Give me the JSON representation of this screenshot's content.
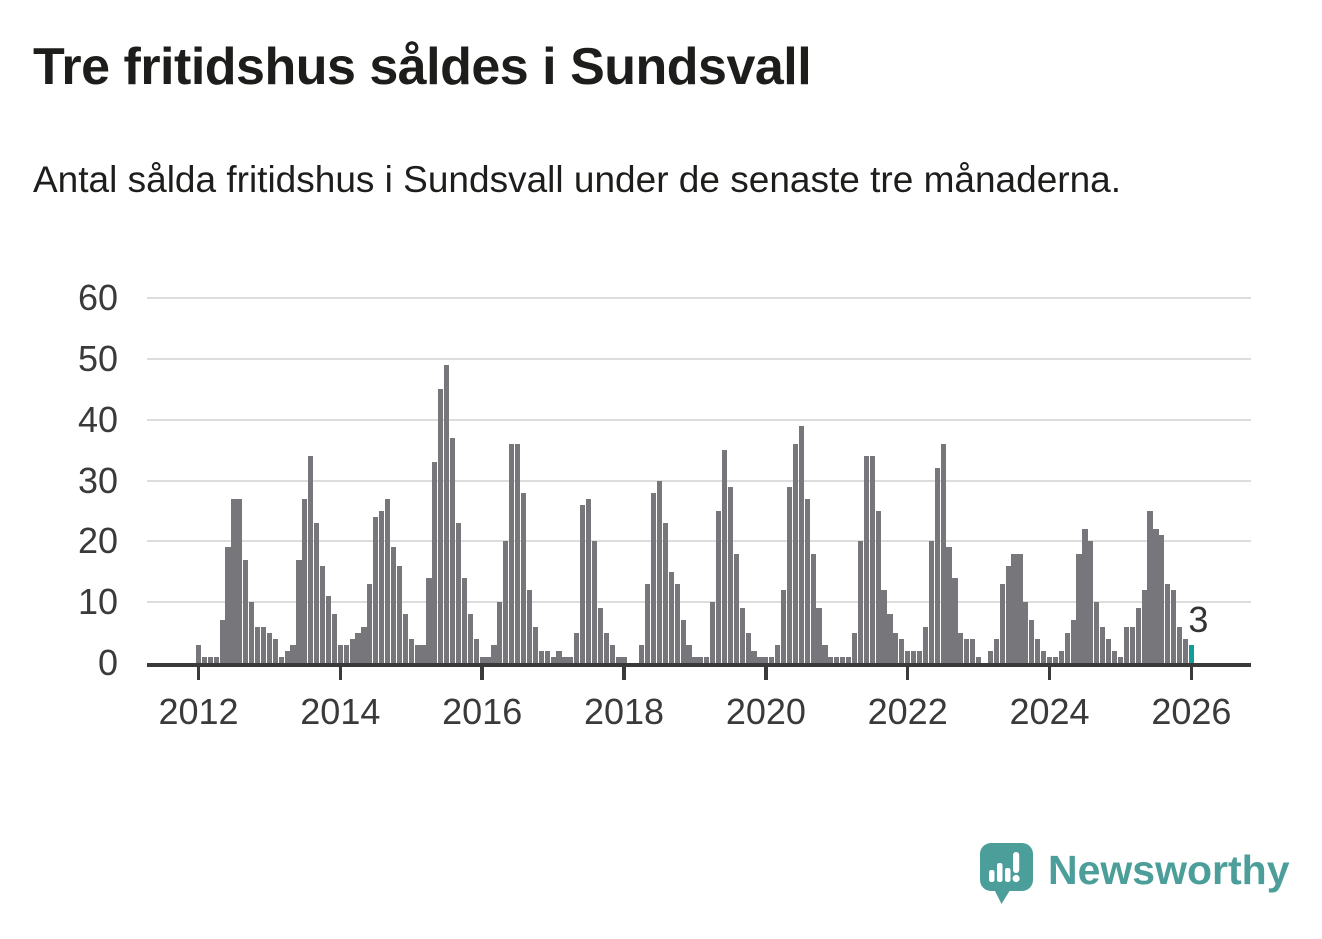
{
  "chart_data": {
    "type": "bar",
    "title": "Tre fritidshus såldes i Sundsvall",
    "subtitle": "Antal sålda fritidshus i Sundsvall under de senaste tre månaderna.",
    "x_start": "2012-01",
    "x_end": "2026-01",
    "x_tick_labels": [
      "2012",
      "2014",
      "2016",
      "2018",
      "2020",
      "2022",
      "2024",
      "2026"
    ],
    "y_ticks": [
      0,
      10,
      20,
      30,
      40,
      50,
      60
    ],
    "ylim": [
      0,
      62
    ],
    "grid": true,
    "legend_position": "none",
    "bar_color": "#77777b",
    "axis_color": "#3a3a3a",
    "gridline_color": "#dddddd",
    "highlight_last_bar": true,
    "highlight_color": "#129d9b",
    "last_value_label": "3",
    "monthly_values_by_year": {
      "2012": [
        3,
        1,
        1,
        1,
        7,
        19,
        27,
        27,
        17,
        10,
        6,
        6
      ],
      "2013": [
        5,
        4,
        1,
        2,
        3,
        17,
        27,
        34,
        23,
        16,
        11,
        8
      ],
      "2014": [
        3,
        3,
        4,
        5,
        6,
        13,
        24,
        25,
        27,
        19,
        16,
        8
      ],
      "2015": [
        4,
        3,
        3,
        14,
        33,
        45,
        49,
        37,
        23,
        14,
        8,
        4
      ],
      "2016": [
        1,
        1,
        3,
        10,
        20,
        36,
        36,
        28,
        12,
        6,
        2,
        2
      ],
      "2017": [
        1,
        2,
        1,
        1,
        5,
        26,
        27,
        20,
        9,
        5,
        3,
        1
      ],
      "2018": [
        1,
        0,
        0,
        3,
        13,
        28,
        30,
        23,
        15,
        13,
        7,
        3
      ],
      "2019": [
        1,
        1,
        1,
        10,
        25,
        35,
        29,
        18,
        9,
        5,
        2,
        1
      ],
      "2020": [
        1,
        1,
        3,
        12,
        29,
        36,
        39,
        27,
        18,
        9,
        3,
        1
      ],
      "2021": [
        1,
        1,
        1,
        5,
        20,
        34,
        34,
        25,
        12,
        8,
        5,
        4
      ],
      "2022": [
        2,
        2,
        2,
        6,
        20,
        32,
        36,
        19,
        14,
        5,
        4,
        4
      ],
      "2023": [
        1,
        0,
        2,
        4,
        13,
        16,
        18,
        18,
        10,
        7,
        4,
        2
      ],
      "2024": [
        1,
        1,
        2,
        5,
        7,
        18,
        22,
        20,
        10,
        6,
        4,
        2
      ],
      "2025": [
        1,
        6,
        6,
        9,
        12,
        25,
        22,
        21,
        13,
        12,
        6,
        4
      ],
      "2026": [
        3
      ]
    }
  },
  "footer": {
    "brand": "Newsworthy",
    "brand_color": "#4b9e99",
    "logo_icon": "bar-chart-speech-bubble-icon"
  }
}
